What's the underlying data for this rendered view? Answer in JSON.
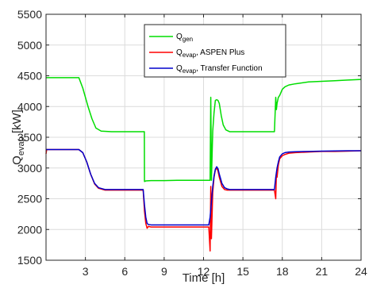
{
  "chart_data": {
    "type": "line",
    "xlabel": "Time [h]",
    "ylabel": "Q",
    "ylabel_sub": "evap",
    "ylabel_unit": " [kW]",
    "xlim": [
      0,
      24
    ],
    "ylim": [
      1500,
      5500
    ],
    "xticks": [
      3,
      6,
      9,
      12,
      15,
      18,
      21,
      24
    ],
    "yticks": [
      1500,
      2000,
      2500,
      3000,
      3500,
      4000,
      4500,
      5000,
      5500
    ],
    "grid": true,
    "legend": {
      "position": "top-right",
      "entries": [
        {
          "main": "Q",
          "sub": "gen",
          "suffix": ""
        },
        {
          "main": "Q",
          "sub": "evap",
          "suffix": ", ASPEN Plus"
        },
        {
          "main": "Q",
          "sub": "evap",
          "suffix": ", Transfer Function"
        }
      ]
    },
    "series": [
      {
        "color": "#00dd00",
        "x": [
          0,
          2.5,
          2.8,
          3.2,
          3.5,
          3.8,
          4.2,
          5,
          7.49,
          7.5,
          7.6,
          8,
          9,
          10,
          12.4,
          12.5,
          12.55,
          12.6,
          12.7,
          12.8,
          12.9,
          13.0,
          13.1,
          13.2,
          13.35,
          13.5,
          13.7,
          14,
          14.5,
          15,
          16,
          17.4,
          17.5,
          17.55,
          17.6,
          17.7,
          17.8,
          18,
          18.2,
          18.5,
          19,
          20,
          21,
          22,
          23,
          24
        ],
        "y": [
          4470,
          4470,
          4300,
          4000,
          3800,
          3650,
          3600,
          3590,
          3590,
          2780,
          2790,
          2795,
          2795,
          2800,
          2800,
          2800,
          4150,
          2800,
          3600,
          3900,
          4100,
          4110,
          4100,
          4050,
          3850,
          3700,
          3620,
          3590,
          3590,
          3590,
          3590,
          3590,
          4150,
          3950,
          4050,
          4150,
          4180,
          4280,
          4320,
          4350,
          4370,
          4400,
          4410,
          4420,
          4430,
          4440
        ]
      },
      {
        "color": "#ff0000",
        "x": [
          0,
          0.05,
          2.5,
          2.8,
          3.1,
          3.4,
          3.7,
          4.0,
          4.5,
          5,
          6,
          7.4,
          7.5,
          7.6,
          7.7,
          7.8,
          8,
          9,
          10,
          12.4,
          12.5,
          12.55,
          12.6,
          12.7,
          12.8,
          12.9,
          13.0,
          13.1,
          13.2,
          13.4,
          13.6,
          13.8,
          14,
          15,
          16,
          17.4,
          17.5,
          17.55,
          17.6,
          17.7,
          17.8,
          18,
          18.2,
          18.5,
          19,
          20,
          21,
          22,
          23,
          24
        ],
        "y": [
          3230,
          3300,
          3300,
          3250,
          3100,
          2900,
          2740,
          2670,
          2640,
          2640,
          2640,
          2640,
          2300,
          2100,
          2020,
          2050,
          2040,
          2040,
          2040,
          2040,
          1650,
          2700,
          1850,
          2600,
          2850,
          2970,
          3000,
          2950,
          2850,
          2700,
          2650,
          2640,
          2640,
          2640,
          2640,
          2640,
          2500,
          2900,
          2850,
          3050,
          3150,
          3200,
          3220,
          3240,
          3250,
          3260,
          3270,
          3270,
          3275,
          3280
        ]
      },
      {
        "color": "#0000cc",
        "x": [
          0,
          2.5,
          2.8,
          3.1,
          3.4,
          3.7,
          4.0,
          4.5,
          5,
          6,
          7.4,
          7.5,
          7.6,
          7.7,
          7.8,
          8,
          9,
          10,
          12.4,
          12.5,
          12.6,
          12.7,
          12.8,
          12.9,
          13.0,
          13.1,
          13.2,
          13.4,
          13.6,
          13.8,
          14,
          15,
          16,
          17.4,
          17.5,
          17.6,
          17.7,
          17.8,
          18,
          18.2,
          18.5,
          19,
          20,
          21,
          22,
          23,
          24
        ],
        "y": [
          3300,
          3300,
          3250,
          3100,
          2900,
          2750,
          2680,
          2650,
          2650,
          2650,
          2650,
          2400,
          2200,
          2100,
          2080,
          2075,
          2075,
          2075,
          2075,
          2200,
          2450,
          2700,
          2870,
          2980,
          3020,
          2990,
          2900,
          2750,
          2680,
          2660,
          2650,
          2650,
          2650,
          2650,
          2850,
          3000,
          3100,
          3180,
          3230,
          3250,
          3260,
          3265,
          3270,
          3275,
          3278,
          3280,
          3280
        ]
      }
    ]
  }
}
